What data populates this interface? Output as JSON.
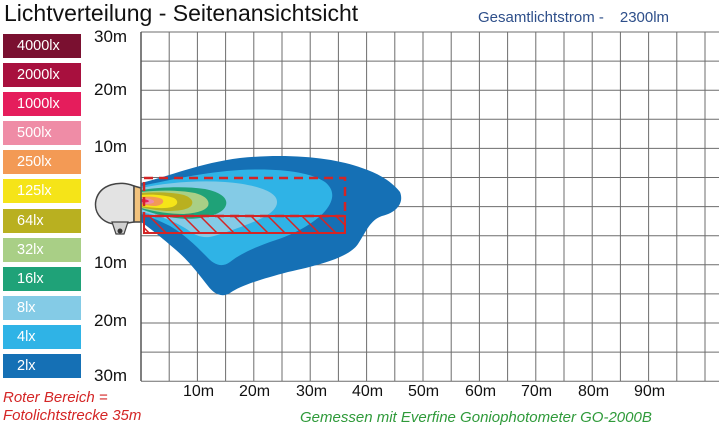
{
  "title": "Lichtverteilung - Seitenansichtsicht",
  "total_flux": {
    "label": "Gesamtlichtstrom  -",
    "value": "2300lm"
  },
  "legend": [
    {
      "label": "4000lx",
      "color": "#7a1030"
    },
    {
      "label": "2000lx",
      "color": "#a8103e"
    },
    {
      "label": "1000lx",
      "color": "#e51d5c"
    },
    {
      "label": "500lx",
      "color": "#ef8ca6"
    },
    {
      "label": "250lx",
      "color": "#f39a55"
    },
    {
      "label": "125lx",
      "color": "#f5e418"
    },
    {
      "label": "64lx",
      "color": "#b9b020"
    },
    {
      "label": "32lx",
      "color": "#a9cf86"
    },
    {
      "label": "16lx",
      "color": "#1fa278"
    },
    {
      "label": "8lx",
      "color": "#84cbe6"
    },
    {
      "label": "4lx",
      "color": "#2fb3e6"
    },
    {
      "label": "2lx",
      "color": "#1570b5"
    }
  ],
  "y_axis_labels": [
    "30m",
    "20m",
    "10m",
    "10m",
    "20m",
    "30m"
  ],
  "x_axis_labels": [
    "10m",
    "20m",
    "30m",
    "40m",
    "50m",
    "60m",
    "70m",
    "80m",
    "90m"
  ],
  "notes": {
    "red_area_line1": "Roter Bereich =",
    "red_area_line2": "Fotolichtstrecke 35m",
    "measured_with": "Gemessen mit Everfine Goniophotometer GO-2000B"
  },
  "colors": {
    "grid": "#6d6d6d",
    "red_area": "#d42525"
  }
}
